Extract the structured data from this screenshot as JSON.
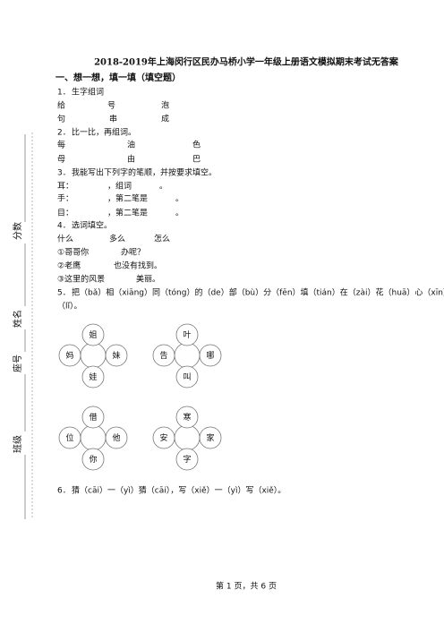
{
  "header": {
    "title": "2018-2019年上海闵行区民办马桥小学一年级上册语文模拟期末考试无答案"
  },
  "section": "一、想一想，填一填（填空题）",
  "q1": {
    "number": "1．",
    "prompt": "生字组词",
    "chars": [
      "给",
      "号",
      "泡",
      "句",
      "串",
      "成"
    ]
  },
  "q2": {
    "number": "2．",
    "prompt": "比一比，再组词。",
    "chars": [
      "每",
      "油",
      "色",
      "母",
      "由",
      "巴"
    ]
  },
  "q3": {
    "number": "3．",
    "prompt": "我能写出下列字的笔顺，并按要求填空。",
    "lines": [
      {
        "char": "耳：",
        "mid": "，组词",
        "end": "。"
      },
      {
        "char": "手：",
        "mid": "，第二笔是",
        "end": "。"
      },
      {
        "char": "目：",
        "mid": "，第二笔是",
        "end": "。"
      }
    ]
  },
  "q4": {
    "number": "4．",
    "prompt": "选词填空。",
    "words": [
      "什么",
      "多么",
      "怎么"
    ],
    "sentences": [
      {
        "start": "①哥哥你",
        "end": "办呢？"
      },
      {
        "start": "②老鹰",
        "end": "也没有找到。"
      },
      {
        "start": "③这里的风景",
        "end": "美丽。"
      }
    ]
  },
  "q5": {
    "number": "5．",
    "line1": "把（bǎ）相（xiāng）同（tóng）的（de）部（bù）分（fēn）填（tián）在（zài）花（huā）心（xīn）里",
    "line2": "（lǐ）。",
    "flowers": [
      [
        "姐",
        "妈",
        "妹",
        "娃"
      ],
      [
        "叶",
        "告",
        "哪",
        "叫"
      ],
      [
        "借",
        "位",
        "他",
        "你"
      ],
      [
        "寒",
        "安",
        "家",
        "字"
      ]
    ]
  },
  "q6": {
    "number": "6．",
    "prompt": "猜（cāi）一（yì）猜（cāi），写（xiě）一（yì）写（xiě）。"
  },
  "footer": "第 1 页，共 6 页",
  "margin": [
    "分数",
    "姓名",
    "座号",
    "班级"
  ]
}
